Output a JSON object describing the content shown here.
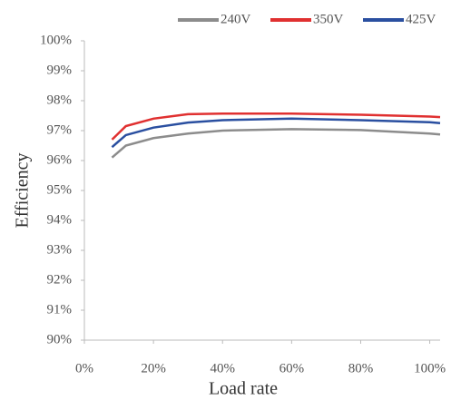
{
  "chart_data": {
    "type": "line",
    "x_label": "Load rate",
    "y_label": "Efficiency",
    "x": [
      8,
      12,
      20,
      30,
      40,
      60,
      80,
      100,
      103
    ],
    "series": [
      {
        "name": "240V",
        "color": "#8c8c8c",
        "values": [
          96.1,
          96.5,
          96.75,
          96.9,
          97.0,
          97.05,
          97.02,
          96.9,
          96.87
        ]
      },
      {
        "name": "350V",
        "color": "#e03030",
        "values": [
          96.7,
          97.15,
          97.4,
          97.55,
          97.57,
          97.57,
          97.53,
          97.47,
          97.45
        ]
      },
      {
        "name": "425V",
        "color": "#2a4fa0",
        "values": [
          96.45,
          96.85,
          97.1,
          97.27,
          97.35,
          97.4,
          97.35,
          97.28,
          97.25
        ]
      }
    ],
    "xlim": [
      0,
      103
    ],
    "ylim": [
      90,
      100
    ],
    "xticks": [
      {
        "value": 0,
        "label": "0%"
      },
      {
        "value": 20,
        "label": "20%"
      },
      {
        "value": 40,
        "label": "40%"
      },
      {
        "value": 60,
        "label": "60%"
      },
      {
        "value": 80,
        "label": "80%"
      },
      {
        "value": 100,
        "label": "100%"
      }
    ],
    "yticks": [
      {
        "value": 90,
        "label": "90%"
      },
      {
        "value": 91,
        "label": "91%"
      },
      {
        "value": 92,
        "label": "92%"
      },
      {
        "value": 93,
        "label": "93%"
      },
      {
        "value": 94,
        "label": "94%"
      },
      {
        "value": 95,
        "label": "95%"
      },
      {
        "value": 96,
        "label": "96%"
      },
      {
        "value": 97,
        "label": "97%"
      },
      {
        "value": 98,
        "label": "98%"
      },
      {
        "value": 99,
        "label": "99%"
      },
      {
        "value": 100,
        "label": "100%"
      }
    ],
    "legend": "top-right"
  }
}
